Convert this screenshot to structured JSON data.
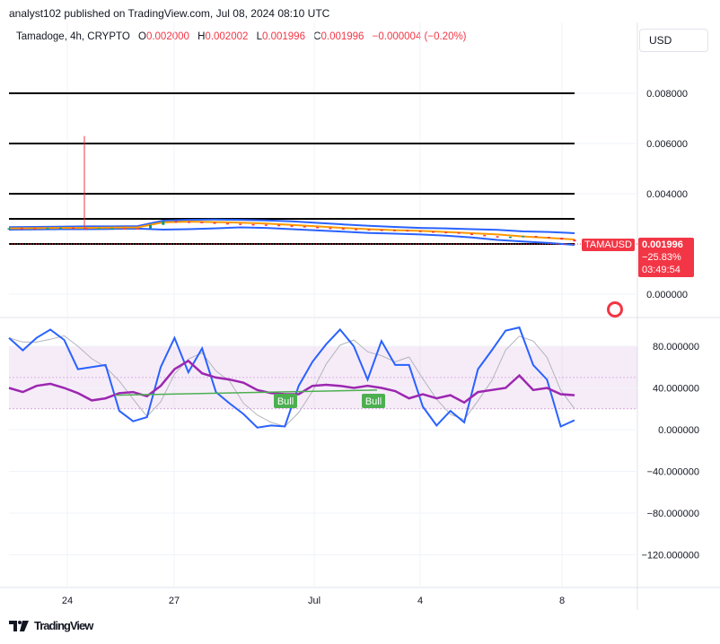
{
  "header": {
    "publish_line": "analyst102 published on TradingView.com, Jul 08, 2024 08:10 UTC"
  },
  "legend": {
    "symbol": "Tamadoge, 4h, CRYPTO",
    "open_label": "O",
    "open": "0.002000",
    "high_label": "H",
    "high": "0.002002",
    "low_label": "L",
    "low": "0.001996",
    "close_label": "C",
    "close": "0.001996",
    "change": "−0.000004 (−0.20%)"
  },
  "currency_button": "USD",
  "price_badge": {
    "symbol": "TAMAUSD",
    "price": "0.001996",
    "change_pct": "−25.83%",
    "countdown": "03:49:54"
  },
  "footer": {
    "brand": "TradingView"
  },
  "colors": {
    "up": "#089981",
    "down": "#f23645",
    "bb_band": "#2962ff",
    "bb_mid": "#ff9800",
    "stoch_k": "#2962ff",
    "stoch_d": "#9c27b0",
    "rsi_bull": "#4caf50"
  },
  "chart_data": [
    {
      "type": "line",
      "panel": "price",
      "y_ticks": [
        "0.008000",
        "0.006000",
        "0.004000",
        "0.000000"
      ],
      "y_range": [
        0.0,
        0.009
      ],
      "x_ticks": [
        "24",
        "27",
        "Jul",
        "4",
        "8"
      ],
      "horizontal_levels": [
        0.008,
        0.006,
        0.004,
        0.003,
        0.002
      ],
      "last_price": 0.001996,
      "series": [
        {
          "role": "upper_band",
          "values": [
            0.00267,
            0.00268,
            0.00269,
            0.0027,
            0.0027,
            0.00271,
            0.00293,
            0.00296,
            0.00297,
            0.00296,
            0.00294,
            0.0029,
            0.00284,
            0.00278,
            0.00272,
            0.00268,
            0.00264,
            0.00262,
            0.00259,
            0.00256,
            0.0025,
            0.00248,
            0.00243
          ]
        },
        {
          "role": "basis",
          "values": [
            0.00262,
            0.00263,
            0.00264,
            0.00264,
            0.00265,
            0.00266,
            0.00286,
            0.00289,
            0.00287,
            0.00285,
            0.00281,
            0.00276,
            0.0027,
            0.00264,
            0.00259,
            0.00255,
            0.00252,
            0.00248,
            0.00243,
            0.00238,
            0.0023,
            0.00224,
            0.00218
          ]
        },
        {
          "role": "lower_band",
          "values": [
            0.00257,
            0.00258,
            0.00259,
            0.00259,
            0.0026,
            0.00261,
            0.00257,
            0.00259,
            0.00262,
            0.00266,
            0.00264,
            0.00259,
            0.00254,
            0.00249,
            0.00244,
            0.00241,
            0.00238,
            0.00233,
            0.00226,
            0.00216,
            0.0021,
            0.00204,
            0.00196
          ]
        },
        {
          "role": "close",
          "values": [
            0.00263,
            0.00262,
            0.00265,
            0.00262,
            0.00263,
            0.00262,
            0.0029,
            0.00288,
            0.00283,
            0.00279,
            0.00276,
            0.00271,
            0.00265,
            0.0026,
            0.00257,
            0.00255,
            0.0025,
            0.00246,
            0.00236,
            0.00226,
            0.00232,
            0.00225,
            0.0021
          ]
        }
      ],
      "spike": {
        "x_index": 4,
        "high": 0.0063
      }
    },
    {
      "type": "line",
      "panel": "oscillator",
      "y_ticks": [
        "80.000000",
        "40.000000",
        "0.000000",
        "−40.000000",
        "−80.000000",
        "−120.000000"
      ],
      "y_range": [
        -140,
        100
      ],
      "band_upper": 80,
      "band_lower": 20,
      "series": [
        {
          "role": "stoch_k",
          "values": [
            88,
            76,
            88,
            96,
            86,
            58,
            60,
            62,
            18,
            8,
            12,
            60,
            88,
            55,
            78,
            36,
            25,
            15,
            2,
            4,
            3,
            42,
            65,
            82,
            96,
            80,
            48,
            85,
            62,
            62,
            22,
            4,
            18,
            7,
            58,
            76,
            95,
            98,
            62,
            48,
            3,
            9
          ]
        },
        {
          "role": "stoch_d",
          "values": [
            40,
            36,
            42,
            44,
            40,
            35,
            28,
            30,
            35,
            36,
            32,
            42,
            58,
            66,
            54,
            50,
            48,
            45,
            38,
            35,
            34,
            34,
            42,
            43,
            42,
            40,
            42,
            40,
            37,
            30,
            34,
            30,
            33,
            26,
            36,
            38,
            40,
            52,
            38,
            40,
            34,
            33
          ]
        }
      ],
      "rsi_line": {
        "from": 33,
        "to": 38
      },
      "annotations": [
        "Bull",
        "Bull"
      ]
    }
  ]
}
